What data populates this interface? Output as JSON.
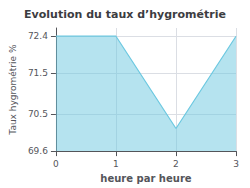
{
  "chart_data": {
    "type": "area",
    "title": "Evolution du taux d’hygrométrie",
    "xlabel": "heure par heure",
    "ylabel": "Taux hygrométrie %",
    "x": [
      0,
      1,
      2,
      3
    ],
    "values": [
      72.4,
      72.4,
      70.15,
      72.4
    ],
    "color": "#6cc8e0",
    "xlim": [
      0,
      3
    ],
    "xticks": [
      0,
      1,
      2,
      3
    ],
    "ylim": [
      69.6,
      72.6
    ],
    "yticks": [
      69.6,
      70.5,
      71.5,
      72.4
    ],
    "grid": true
  }
}
